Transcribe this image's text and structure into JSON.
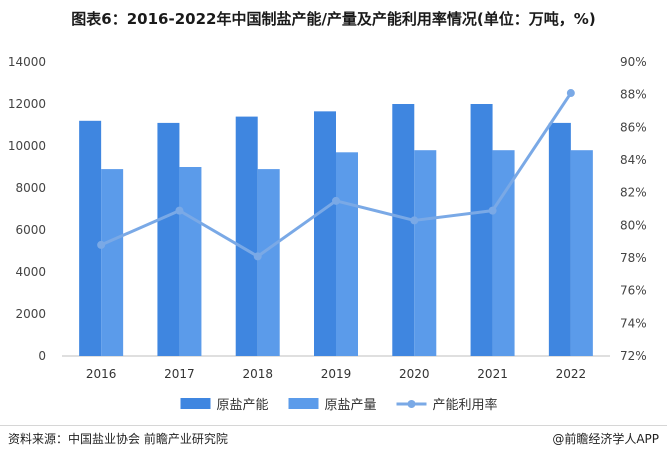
{
  "title": "图表6：2016-2022年中国制盐产能/产量及产能利用率情况(单位：万吨，%)",
  "footer": {
    "source": "资料来源：中国盐业协会 前瞻产业研究院",
    "brand": "@前瞻经济学人APP"
  },
  "chart_data": {
    "type": "bar",
    "categories": [
      "2016",
      "2017",
      "2018",
      "2019",
      "2020",
      "2021",
      "2022"
    ],
    "series": [
      {
        "name": "原盐产能",
        "kind": "bar",
        "axis": "left",
        "color": "#3f86e0",
        "values": [
          11200,
          11100,
          11400,
          11650,
          12000,
          12000,
          11100
        ]
      },
      {
        "name": "原盐产量",
        "kind": "bar",
        "axis": "left",
        "color": "#5b9bea",
        "values": [
          8900,
          9000,
          8900,
          9700,
          9800,
          9800,
          9800
        ]
      },
      {
        "name": "产能利用率",
        "kind": "line",
        "axis": "right",
        "color": "#7aa9e6",
        "values": [
          78.8,
          80.9,
          78.1,
          81.5,
          80.3,
          80.9,
          88.1
        ]
      }
    ],
    "ylim": [
      0,
      14000
    ],
    "y_ticks": [
      "0",
      "2000",
      "4000",
      "6000",
      "8000",
      "10000",
      "12000",
      "14000"
    ],
    "y2lim": [
      72,
      90
    ],
    "y2_ticks": [
      "72%",
      "74%",
      "76%",
      "78%",
      "80%",
      "82%",
      "84%",
      "86%",
      "88%",
      "90%"
    ],
    "legend_position": "bottom-center",
    "grid": false
  }
}
